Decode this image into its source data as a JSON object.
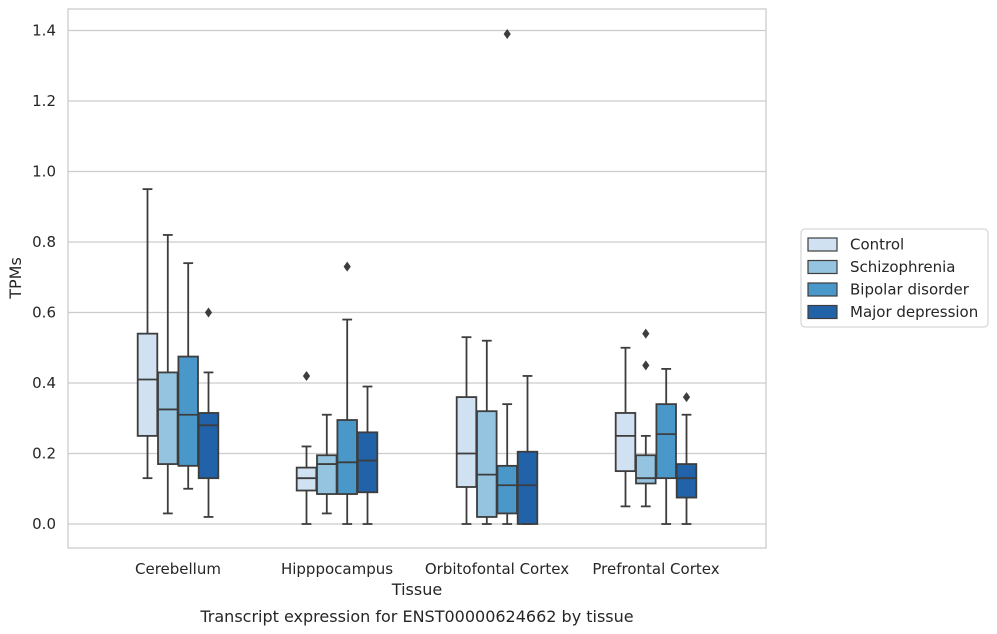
{
  "caption": "Transcript expression for ENST00000624662 by tissue",
  "chart_data": {
    "type": "box",
    "xlabel": "Tissue",
    "ylabel": "TPMs",
    "ylim": [
      -0.065,
      1.46
    ],
    "yticks": [
      0.0,
      0.2,
      0.4,
      0.6,
      0.8,
      1.0,
      1.2,
      1.4
    ],
    "ytick_labels": [
      "0.0",
      "0.2",
      "0.4",
      "0.6",
      "0.8",
      "1.0",
      "1.2",
      "1.4"
    ],
    "grid": "horizontal",
    "legend_position": "right",
    "categories": [
      "Cerebellum",
      "Hipppocampus",
      "Orbitofontal Cortex",
      "Prefrontal Cortex"
    ],
    "series": [
      {
        "name": "Control",
        "color": "#d0e1f2",
        "boxes": [
          {
            "whislo": 0.13,
            "q1": 0.25,
            "med": 0.41,
            "q3": 0.54,
            "whishi": 0.95,
            "fliers": []
          },
          {
            "whislo": 0.0,
            "q1": 0.095,
            "med": 0.13,
            "q3": 0.16,
            "whishi": 0.22,
            "fliers": [
              0.42
            ]
          },
          {
            "whislo": 0.0,
            "q1": 0.105,
            "med": 0.2,
            "q3": 0.36,
            "whishi": 0.53,
            "fliers": []
          },
          {
            "whislo": 0.05,
            "q1": 0.15,
            "med": 0.25,
            "q3": 0.315,
            "whishi": 0.5,
            "fliers": []
          }
        ]
      },
      {
        "name": "Schizophrenia",
        "color": "#94c4df",
        "boxes": [
          {
            "whislo": 0.03,
            "q1": 0.17,
            "med": 0.325,
            "q3": 0.43,
            "whishi": 0.82,
            "fliers": []
          },
          {
            "whislo": 0.03,
            "q1": 0.085,
            "med": 0.17,
            "q3": 0.195,
            "whishi": 0.31,
            "fliers": []
          },
          {
            "whislo": 0.0,
            "q1": 0.02,
            "med": 0.14,
            "q3": 0.32,
            "whishi": 0.52,
            "fliers": []
          },
          {
            "whislo": 0.05,
            "q1": 0.115,
            "med": 0.13,
            "q3": 0.195,
            "whishi": 0.25,
            "fliers": [
              0.45,
              0.54
            ]
          }
        ]
      },
      {
        "name": "Bipolar disorder",
        "color": "#4a98c9",
        "boxes": [
          {
            "whislo": 0.1,
            "q1": 0.165,
            "med": 0.31,
            "q3": 0.475,
            "whishi": 0.74,
            "fliers": []
          },
          {
            "whislo": 0.0,
            "q1": 0.085,
            "med": 0.175,
            "q3": 0.295,
            "whishi": 0.58,
            "fliers": [
              0.73
            ]
          },
          {
            "whislo": 0.0,
            "q1": 0.03,
            "med": 0.11,
            "q3": 0.165,
            "whishi": 0.34,
            "fliers": [
              1.39
            ]
          },
          {
            "whislo": 0.0,
            "q1": 0.13,
            "med": 0.255,
            "q3": 0.34,
            "whishi": 0.44,
            "fliers": []
          }
        ]
      },
      {
        "name": "Major depression",
        "color": "#2162a8",
        "boxes": [
          {
            "whislo": 0.02,
            "q1": 0.13,
            "med": 0.28,
            "q3": 0.315,
            "whishi": 0.43,
            "fliers": [
              0.6
            ]
          },
          {
            "whislo": 0.0,
            "q1": 0.09,
            "med": 0.18,
            "q3": 0.26,
            "whishi": 0.39,
            "fliers": []
          },
          {
            "whislo": 0.0,
            "q1": 0.0,
            "med": 0.11,
            "q3": 0.205,
            "whishi": 0.42,
            "fliers": []
          },
          {
            "whislo": 0.0,
            "q1": 0.075,
            "med": 0.13,
            "q3": 0.17,
            "whishi": 0.31,
            "fliers": [
              0.36
            ]
          }
        ]
      }
    ]
  }
}
